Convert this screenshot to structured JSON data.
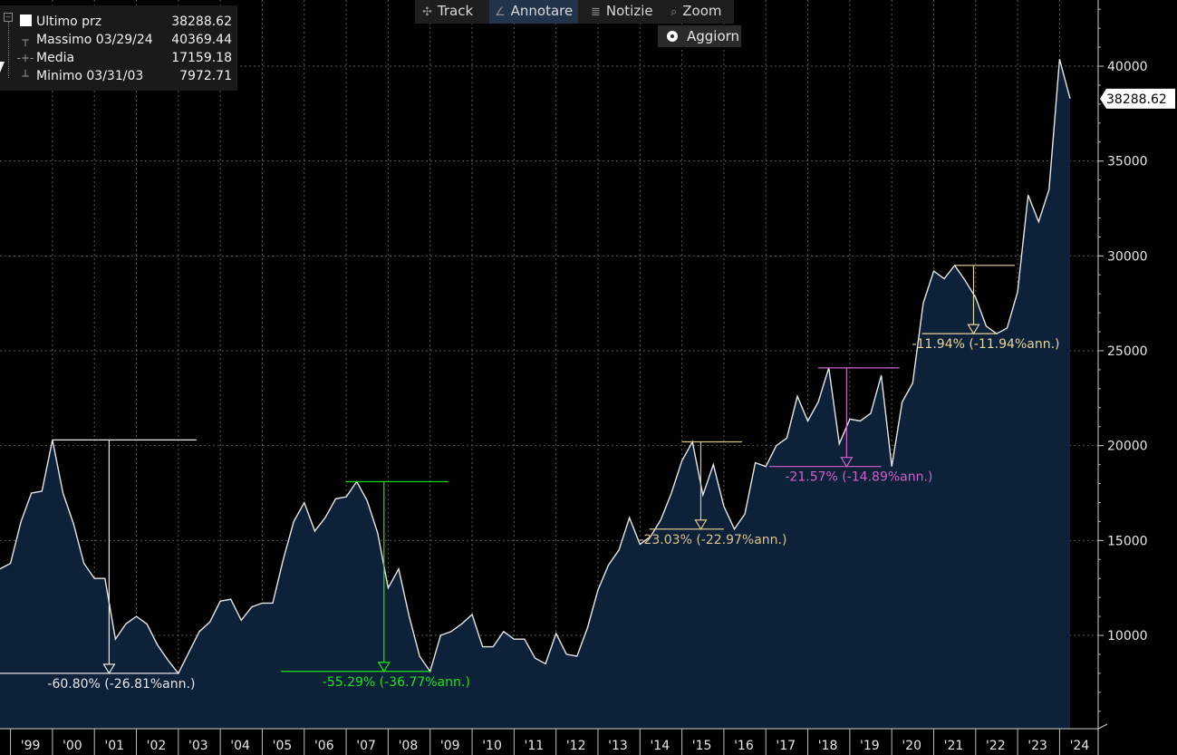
{
  "legend": {
    "rows": [
      {
        "label": "Ultimo prz",
        "value": "38288.62",
        "marker": "square"
      },
      {
        "label": "Massimo 03/29/24",
        "value": "40369.44",
        "marker": "┬"
      },
      {
        "label": "Media",
        "value": "17159.18",
        "marker": "-+-"
      },
      {
        "label": "Minimo 03/31/03",
        "value": "7972.71",
        "marker": "┴"
      }
    ]
  },
  "toolbar": {
    "track": "Track",
    "annotate": "Annotare",
    "news": "Notizie",
    "zoom": "Zoom",
    "update": "Aggiorn"
  },
  "chart_data": {
    "type": "area",
    "series": [
      {
        "x": [
          1998.75,
          1999.0,
          1999.25,
          1999.5,
          1999.75,
          2000.0,
          2000.25,
          2000.5,
          2000.75,
          2001.0,
          2001.25,
          2001.5,
          2001.75,
          2002.0,
          2002.25,
          2002.5,
          2002.75,
          2003.0,
          2003.25,
          2003.5,
          2003.75,
          2004.0,
          2004.25,
          2004.5,
          2004.75,
          2005.0,
          2005.25,
          2005.5,
          2005.75,
          2006.0,
          2006.25,
          2006.5,
          2006.75,
          2007.0,
          2007.25,
          2007.5,
          2007.75,
          2008.0,
          2008.25,
          2008.5,
          2008.75,
          2009.0,
          2009.25,
          2009.5,
          2009.75,
          2010.0,
          2010.25,
          2010.5,
          2010.75,
          2011.0,
          2011.25,
          2011.5,
          2011.75,
          2012.0,
          2012.25,
          2012.5,
          2012.75,
          2013.0,
          2013.25,
          2013.5,
          2013.75,
          2014.0,
          2014.25,
          2014.5,
          2014.75,
          2015.0,
          2015.25,
          2015.5,
          2015.75,
          2016.0,
          2016.25,
          2016.5,
          2016.75,
          2017.0,
          2017.25,
          2017.5,
          2017.75,
          2018.0,
          2018.25,
          2018.5,
          2018.75,
          2019.0,
          2019.25,
          2019.5,
          2019.75,
          2020.0,
          2020.25,
          2020.5,
          2020.75,
          2021.0,
          2021.25,
          2021.5,
          2021.75,
          2022.0,
          2022.25,
          2022.5,
          2022.75,
          2023.0,
          2023.25,
          2023.5,
          2023.75,
          2024.0,
          2024.25
        ],
        "y": [
          13500,
          13800,
          16000,
          17500,
          17600,
          20300,
          17500,
          15900,
          13800,
          13000,
          13000,
          9800,
          10600,
          11000,
          10600,
          9500,
          8700,
          8000,
          9100,
          10200,
          10700,
          11800,
          11900,
          10800,
          11500,
          11700,
          11700,
          14000,
          16000,
          17000,
          15500,
          16200,
          17200,
          17300,
          18100,
          17100,
          15400,
          12500,
          13500,
          11000,
          8900,
          8100,
          10000,
          10200,
          10600,
          11100,
          9400,
          9400,
          10200,
          9800,
          9800,
          8800,
          8500,
          10100,
          9000,
          8900,
          10400,
          12400,
          13700,
          14500,
          16200,
          14800,
          15200,
          16100,
          17500,
          19200,
          20200,
          17400,
          19000,
          16800,
          15600,
          16400,
          19100,
          18900,
          20000,
          20400,
          22600,
          21300,
          22300,
          24100,
          20100,
          21400,
          21300,
          21700,
          23700,
          18900,
          22300,
          23300,
          27500,
          29200,
          28800,
          29500,
          28700,
          27800,
          26300,
          25900,
          26200,
          28100,
          33200,
          31800,
          33500,
          40369.44,
          38288.62
        ]
      }
    ],
    "x_ticks": [
      "'99",
      "'00",
      "'01",
      "'02",
      "'03",
      "'04",
      "'05",
      "'06",
      "'07",
      "'08",
      "'09",
      "'10",
      "'11",
      "'12",
      "'13",
      "'14",
      "'15",
      "'16",
      "'17",
      "'18",
      "'19",
      "'20",
      "'21",
      "'22",
      "'23",
      "'24"
    ],
    "y_ticks": [
      10000,
      15000,
      20000,
      25000,
      30000,
      35000,
      40000
    ],
    "ylim": [
      5400,
      43500
    ],
    "last_value_label": "38288.62",
    "colors": {
      "line": "#e6e6e6",
      "fill": "#0d2138",
      "grid": "#5a5a5a"
    },
    "grid": true,
    "annotations": [
      {
        "label": "-60.80% (-26.81%ann.)",
        "x_start": 2000.0,
        "x_end": 2003.0,
        "y_high": 20300,
        "y_low": 8000,
        "color": "#e6e6e6"
      },
      {
        "label": "-55.29% (-36.77%ann.)",
        "x_start": 2007.0,
        "x_end": 2009.0,
        "y_high": 18100,
        "y_low": 8100,
        "color": "#19e619"
      },
      {
        "label": "-23.03% (-22.97%ann.)",
        "x_start": 2015.0,
        "x_end": 2016.0,
        "y_high": 20200,
        "y_low": 15600,
        "color": "#d9c48f"
      },
      {
        "label": "-21.57% (-14.89%ann.)",
        "x_start": 2018.25,
        "x_end": 2019.75,
        "y_high": 24100,
        "y_low": 18900,
        "color": "#d060c8"
      },
      {
        "label": "-11.94% (-11.94%ann.)",
        "x_start": 2021.5,
        "x_end": 2022.5,
        "y_high": 29500,
        "y_low": 25900,
        "color": "#e6d59a"
      }
    ]
  }
}
